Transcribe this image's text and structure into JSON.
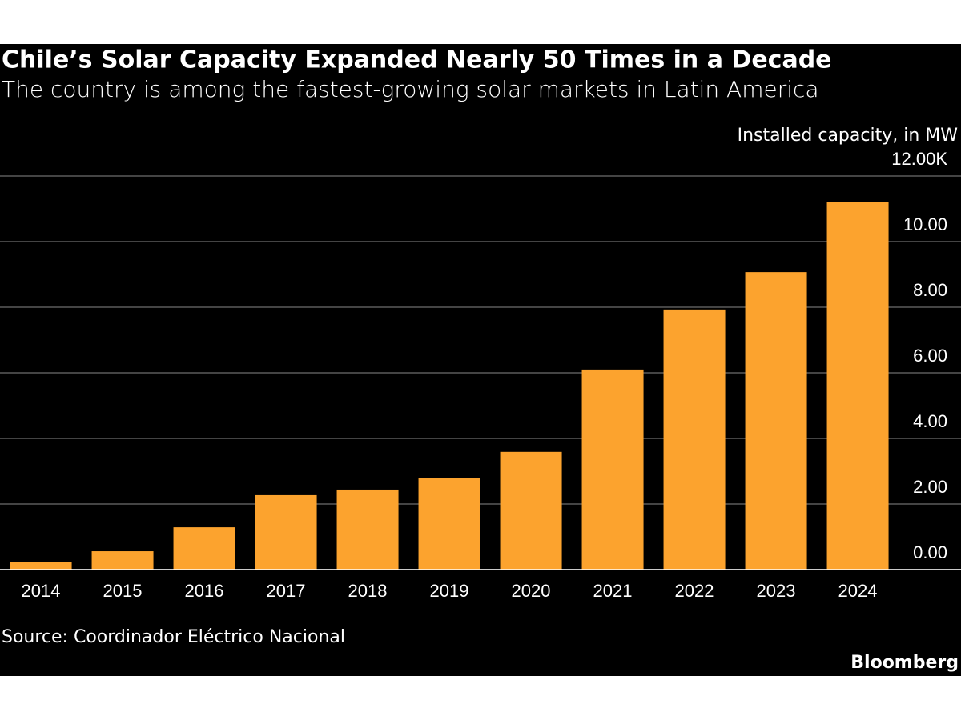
{
  "chart_data": {
    "type": "bar",
    "title": "Chile’s Solar Capacity Expanded Nearly 50 Times in a Decade",
    "subtitle": "The country is among the fastest-growing solar markets in Latin America",
    "y_axis_label": "Installed capacity, in MW",
    "categories": [
      "2014",
      "2015",
      "2016",
      "2017",
      "2018",
      "2019",
      "2020",
      "2021",
      "2022",
      "2023",
      "2024"
    ],
    "values": [
      0.22,
      0.56,
      1.29,
      2.27,
      2.44,
      2.8,
      3.59,
      6.1,
      7.93,
      9.07,
      11.2
    ],
    "color": "#fca32e",
    "ylim": [
      0,
      12
    ],
    "yticks": [
      {
        "value": 0,
        "label": "0.00"
      },
      {
        "value": 2,
        "label": "2.00"
      },
      {
        "value": 4,
        "label": "4.00"
      },
      {
        "value": 6,
        "label": "6.00"
      },
      {
        "value": 8,
        "label": "8.00"
      },
      {
        "value": 10,
        "label": "10.00"
      },
      {
        "value": 12,
        "label": "12.00K"
      }
    ],
    "grid": true,
    "source": "Source: Coordinador Eléctrico Nacional",
    "brand": "Bloomberg"
  }
}
